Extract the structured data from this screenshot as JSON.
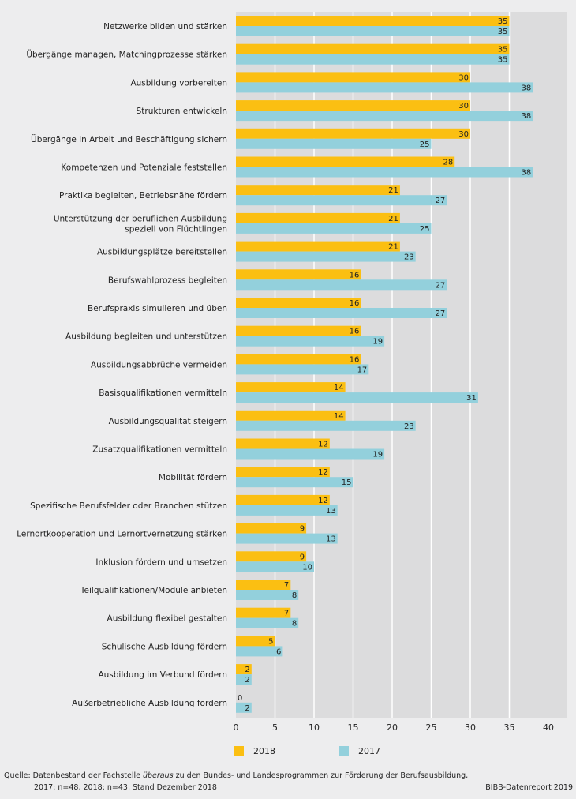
{
  "chart_data": {
    "type": "bar",
    "orientation": "horizontal",
    "categories": [
      "Netzwerke bilden und stärken",
      "Übergänge managen, Matchingprozesse stärken",
      "Ausbildung vorbereiten",
      "Strukturen entwickeln",
      "Übergänge in Arbeit und Beschäftigung sichern",
      "Kompetenzen und Potenziale feststellen",
      "Praktika begleiten, Betriebsnähe fördern",
      "Unterstützung der beruflichen Ausbildung\nspeziell von Flüchtlingen",
      "Ausbildungsplätze bereitstellen",
      "Berufswahlprozess begleiten",
      "Berufspraxis simulieren und üben",
      "Ausbildung begleiten und unterstützen",
      "Ausbildungsabbrüche vermeiden",
      "Basisqualifikationen vermitteln",
      "Ausbildungsqualität steigern",
      "Zusatzqualifikationen vermitteln",
      "Mobilität fördern",
      "Spezifische Berufsfelder oder Branchen stützen",
      "Lernortkooperation und Lernortvernetzung stärken",
      "Inklusion fördern und umsetzen",
      "Teilqualifikationen/Module anbieten",
      "Ausbildung flexibel gestalten",
      "Schulische Ausbildung fördern",
      "Ausbildung im Verbund fördern",
      "Außerbetriebliche Ausbildung fördern"
    ],
    "series": [
      {
        "name": "2018",
        "color": "#fbbf12",
        "values": [
          35,
          35,
          30,
          30,
          30,
          28,
          21,
          21,
          21,
          16,
          16,
          16,
          16,
          14,
          14,
          12,
          12,
          12,
          9,
          9,
          7,
          7,
          5,
          2,
          0
        ]
      },
      {
        "name": "2017",
        "color": "#93d0dc",
        "values": [
          35,
          35,
          38,
          38,
          25,
          38,
          27,
          25,
          23,
          27,
          27,
          19,
          17,
          31,
          23,
          19,
          15,
          13,
          13,
          10,
          8,
          8,
          6,
          2,
          2
        ]
      }
    ],
    "xlim": [
      0,
      40
    ],
    "xticks": [
      "0",
      "5",
      "10",
      "15",
      "20",
      "25",
      "30",
      "35",
      "40"
    ],
    "grid": true,
    "legend_position": "bottom"
  },
  "footer": {
    "source_line1_prefix": "Quelle: Datenbestand der Fachstelle ",
    "source_line1_italic": "überaus",
    "source_line1_suffix": " zu den Bundes- und Landesprogrammen zur Förderung der Berufsausbildung,",
    "source_line2": "2017: n=48, 2018: n=43, Stand Dezember 2018",
    "credit": "BIBB-Datenreport 2019"
  }
}
